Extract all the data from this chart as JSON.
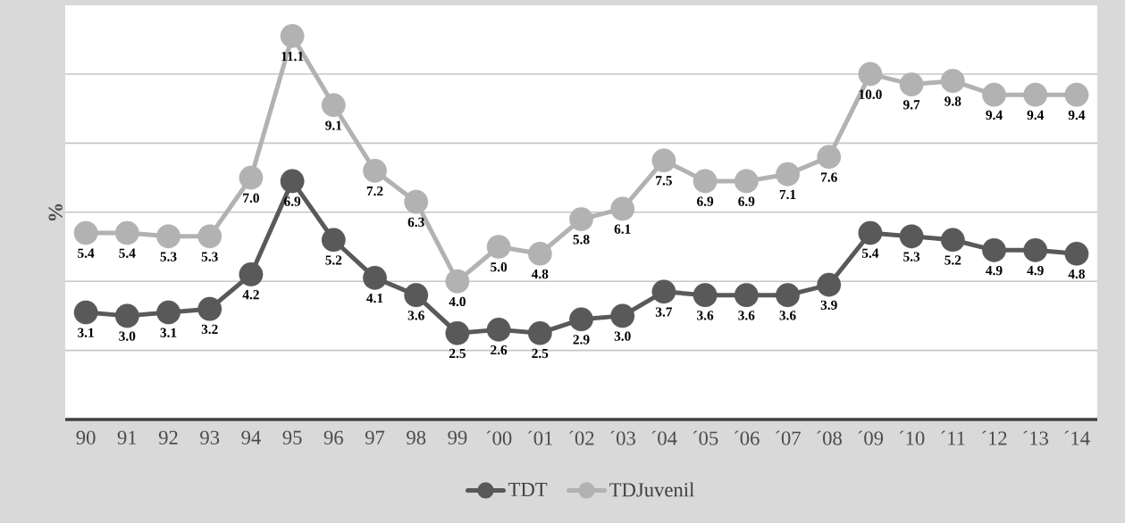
{
  "chart_data": {
    "type": "line",
    "ylabel": "%",
    "categories": [
      "90",
      "91",
      "92",
      "93",
      "94",
      "95",
      "96",
      "97",
      "98",
      "99",
      "´00",
      "´01",
      "´02",
      "´03",
      "´04",
      "´05",
      "´06",
      "´07",
      "´08",
      "´09",
      "´10",
      "´11",
      "´12",
      "´13",
      "´14"
    ],
    "series": [
      {
        "name": "TDT",
        "color": "#595959",
        "values": [
          3.1,
          3.0,
          3.1,
          3.2,
          4.2,
          6.9,
          5.2,
          4.1,
          3.6,
          2.5,
          2.6,
          2.5,
          2.9,
          3.0,
          3.7,
          3.6,
          3.6,
          3.6,
          3.9,
          5.4,
          5.3,
          5.2,
          4.9,
          4.9,
          4.8
        ],
        "value_labels": [
          "3.1",
          "3.0",
          "3.1",
          "3.2",
          "4.2",
          "6.9",
          "5.2",
          "4.1",
          "3.6",
          "2.5",
          "2.6",
          "2.5",
          "2.9",
          "3.0",
          "3.7",
          "3.6",
          "3.6",
          "3.6",
          "3.9",
          "5.4",
          "5.3",
          "5.2",
          "4.9",
          "4.9",
          "4.8"
        ]
      },
      {
        "name": "TDJuvenil",
        "color": "#b2b2b2",
        "values": [
          5.4,
          5.4,
          5.3,
          5.3,
          7.0,
          11.1,
          9.1,
          7.2,
          6.3,
          4.0,
          5.0,
          4.8,
          5.8,
          6.1,
          7.5,
          6.9,
          6.9,
          7.1,
          7.6,
          10.0,
          9.7,
          9.8,
          9.4,
          9.4,
          9.4
        ],
        "value_labels": [
          "5.4",
          "5.4",
          "5.3",
          "5.3",
          "7.0",
          "11.1",
          "9.1",
          "7.2",
          "6.3",
          "4.0",
          "5.0",
          "4.8",
          "5.8",
          "6.1",
          "7.5",
          "6.9",
          "6.9",
          "7.1",
          "7.6",
          "10.0",
          "9.7",
          "9.8",
          "9.4",
          "9.4",
          "9.4"
        ]
      }
    ],
    "grid": "y",
    "legend": "bottom",
    "tick_labels": "x",
    "marker": "circle",
    "line_style": "solid"
  }
}
